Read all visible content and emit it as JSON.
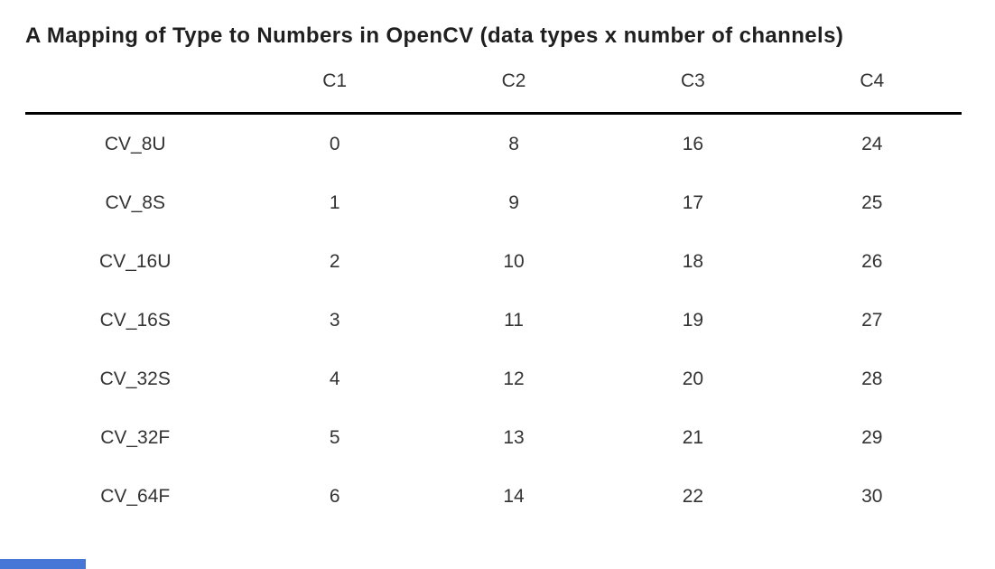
{
  "page": {
    "background_color": "#ffffff",
    "text_color": "#333333",
    "rule_color": "#000000"
  },
  "title": "A Mapping of Type to Numbers in OpenCV (data types x number of channels)",
  "table": {
    "columns": [
      "",
      "C1",
      "C2",
      "C3",
      "C4"
    ],
    "rows": [
      {
        "label": "CV_8U",
        "values": [
          0,
          8,
          16,
          24
        ]
      },
      {
        "label": "CV_8S",
        "values": [
          1,
          9,
          17,
          25
        ]
      },
      {
        "label": "CV_16U",
        "values": [
          2,
          10,
          18,
          26
        ]
      },
      {
        "label": "CV_16S",
        "values": [
          3,
          11,
          19,
          27
        ]
      },
      {
        "label": "CV_32S",
        "values": [
          4,
          12,
          20,
          28
        ]
      },
      {
        "label": "CV_32F",
        "values": [
          5,
          13,
          21,
          29
        ]
      },
      {
        "label": "CV_64F",
        "values": [
          6,
          14,
          22,
          30
        ]
      }
    ]
  },
  "bottom_bar": {
    "color": "#4677d6"
  }
}
